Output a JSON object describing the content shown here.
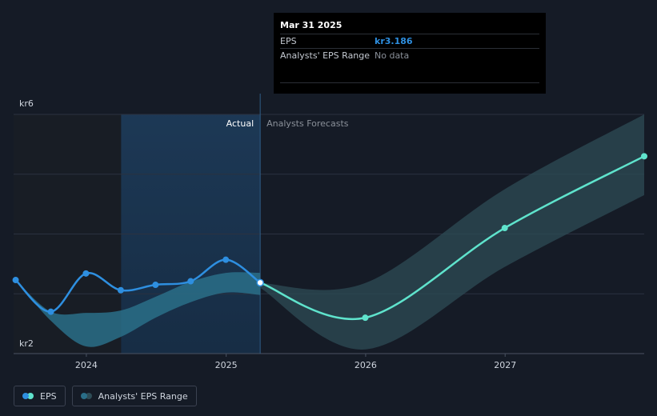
{
  "tooltip": {
    "date": "Mar 31 2025",
    "rows": [
      {
        "label": "EPS",
        "value": "kr3.186"
      },
      {
        "label": "Analysts' EPS Range",
        "value": "No data"
      }
    ]
  },
  "legend": [
    {
      "label": "EPS",
      "colors": [
        "#2e8fe0",
        "#5fe3cc"
      ]
    },
    {
      "label": "Analysts' EPS Range",
      "colors": [
        "#2a6e88",
        "#2e4c56"
      ]
    }
  ],
  "chart_data": {
    "type": "line",
    "yunit": "kr",
    "ylim": [
      2,
      6
    ],
    "y_tick_labels": [
      {
        "value": 6,
        "label": "kr6"
      },
      {
        "value": 2,
        "label": "kr2"
      }
    ],
    "gridlines": [
      5,
      4,
      3
    ],
    "x_ticks": [
      {
        "value": "2024-01-01",
        "label": "2024"
      },
      {
        "value": "2025-01-01",
        "label": "2025"
      },
      {
        "value": "2026-01-01",
        "label": "2026"
      },
      {
        "value": "2027-01-01",
        "label": "2027"
      }
    ],
    "xlim": [
      "2023-05-20",
      "2027-12-31"
    ],
    "regions": {
      "actual_label": "Actual",
      "forecast_label": "Analysts Forecasts",
      "past_shade_start": "2024-04-01",
      "divider": "2025-03-31"
    },
    "colors": {
      "eps_actual": "#2e8fe0",
      "eps_forecast": "#5fe3cc",
      "range_actual": "#2a6e88",
      "range_forecast": "#2e4c56",
      "grid": "#2b3240",
      "axis_text": "#cfd5de"
    },
    "series": [
      {
        "name": "EPS",
        "role": "actual",
        "points": [
          {
            "x": "2023-06-30",
            "y": 3.23
          },
          {
            "x": "2023-09-30",
            "y": 2.7
          },
          {
            "x": "2023-12-31",
            "y": 3.34
          },
          {
            "x": "2024-03-31",
            "y": 3.06
          },
          {
            "x": "2024-06-30",
            "y": 3.15
          },
          {
            "x": "2024-09-30",
            "y": 3.21
          },
          {
            "x": "2024-12-31",
            "y": 3.57
          },
          {
            "x": "2025-03-31",
            "y": 3.186
          }
        ]
      },
      {
        "name": "EPS",
        "role": "forecast",
        "points": [
          {
            "x": "2025-03-31",
            "y": 3.186
          },
          {
            "x": "2025-12-31",
            "y": 2.6
          },
          {
            "x": "2026-12-31",
            "y": 4.1
          },
          {
            "x": "2027-12-31",
            "y": 5.3
          }
        ]
      },
      {
        "name": "Analysts' EPS Range",
        "role": "actual",
        "upper": [
          {
            "x": "2023-06-30",
            "y": 3.23
          },
          {
            "x": "2023-09-30",
            "y": 2.7
          },
          {
            "x": "2023-12-31",
            "y": 2.68
          },
          {
            "x": "2024-03-31",
            "y": 2.72
          },
          {
            "x": "2024-06-30",
            "y": 2.95
          },
          {
            "x": "2024-09-30",
            "y": 3.2
          },
          {
            "x": "2024-12-31",
            "y": 3.35
          },
          {
            "x": "2025-03-31",
            "y": 3.35
          }
        ],
        "lower": [
          {
            "x": "2023-06-30",
            "y": 3.23
          },
          {
            "x": "2023-09-30",
            "y": 2.55
          },
          {
            "x": "2023-12-31",
            "y": 2.12
          },
          {
            "x": "2024-03-31",
            "y": 2.28
          },
          {
            "x": "2024-06-30",
            "y": 2.6
          },
          {
            "x": "2024-09-30",
            "y": 2.86
          },
          {
            "x": "2024-12-31",
            "y": 3.02
          },
          {
            "x": "2025-03-31",
            "y": 2.98
          }
        ]
      },
      {
        "name": "Analysts' EPS Range",
        "role": "forecast",
        "upper": [
          {
            "x": "2025-03-31",
            "y": 3.18
          },
          {
            "x": "2025-12-31",
            "y": 3.18
          },
          {
            "x": "2026-12-31",
            "y": 4.75
          },
          {
            "x": "2027-12-31",
            "y": 6.0
          }
        ],
        "lower": [
          {
            "x": "2025-03-31",
            "y": 3.1
          },
          {
            "x": "2025-12-31",
            "y": 2.07
          },
          {
            "x": "2026-12-31",
            "y": 3.45
          },
          {
            "x": "2027-12-31",
            "y": 4.65
          }
        ]
      }
    ]
  }
}
